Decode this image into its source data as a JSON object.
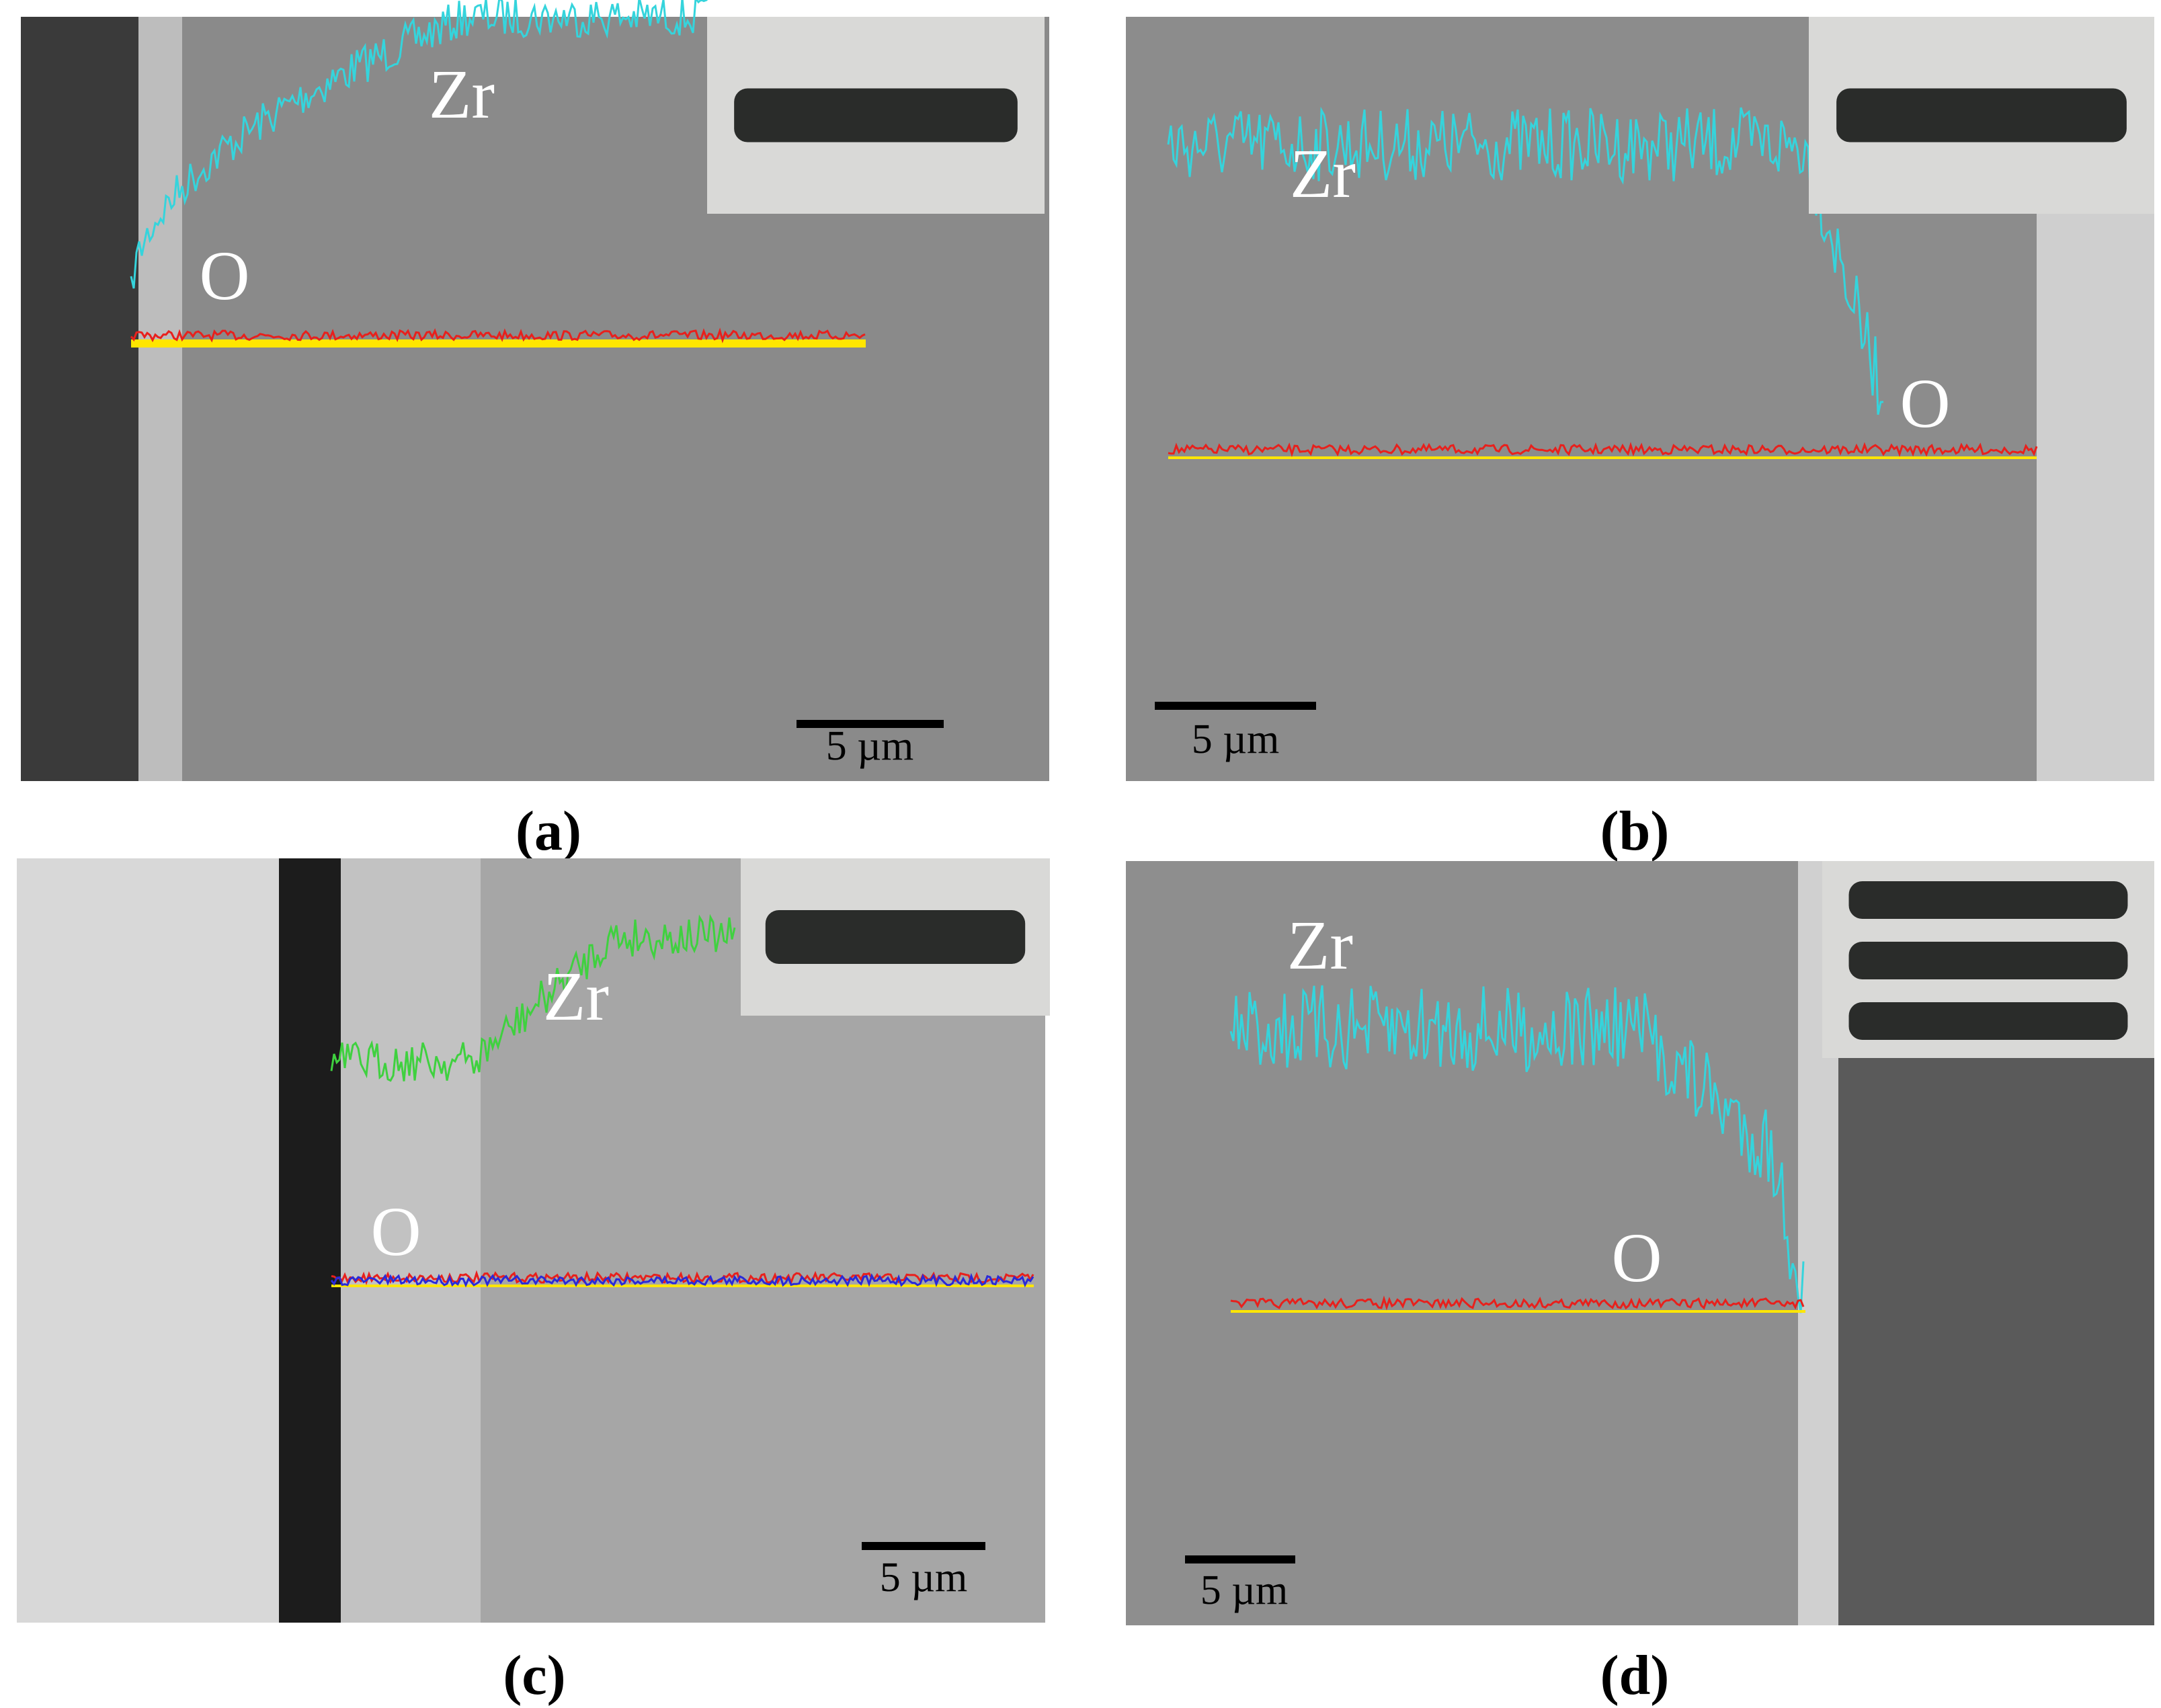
{
  "panels": [
    {
      "caption": "(a)",
      "labels": [
        "Zr",
        "O"
      ],
      "scale_bar": "5 µm"
    },
    {
      "caption": "(b)",
      "labels": [
        "Zr",
        "O"
      ],
      "scale_bar": "5 µm"
    },
    {
      "caption": "(c)",
      "labels": [
        "Zr",
        "O"
      ],
      "scale_bar": "5 µm"
    },
    {
      "caption": "(d)",
      "labels": [
        "Zr",
        "O"
      ],
      "scale_bar": "5 µm"
    }
  ]
}
